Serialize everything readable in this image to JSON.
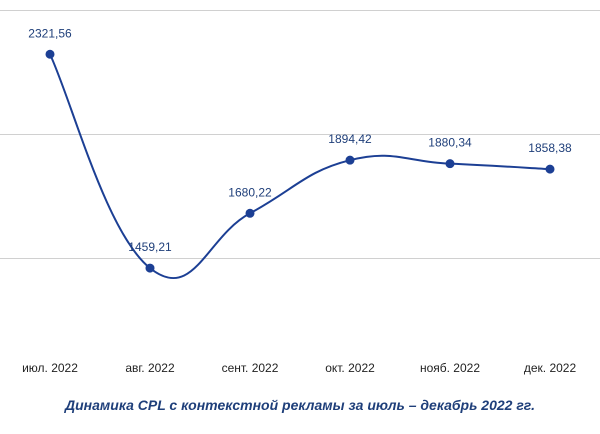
{
  "chart_data": {
    "type": "line",
    "categories": [
      "июл. 2022",
      "авг. 2022",
      "сент. 2022",
      "окт. 2022",
      "нояб. 2022",
      "дек. 2022"
    ],
    "values": [
      2321.56,
      1459.21,
      1680.22,
      1894.42,
      1880.34,
      1858.38
    ],
    "data_labels": [
      "2321,56",
      "1459,21",
      "1680,22",
      "1894,42",
      "1880,34",
      "1858,38"
    ],
    "title": "Динамика CPL с контекстной рекламы за июль – декабрь 2022 гг.",
    "xlabel": "",
    "ylabel": "",
    "ylim": [
      1000,
      2500
    ],
    "gridlines": [
      1500,
      2000,
      2500
    ],
    "grid": true,
    "legend": "none",
    "line_color": "#1c3f94"
  }
}
